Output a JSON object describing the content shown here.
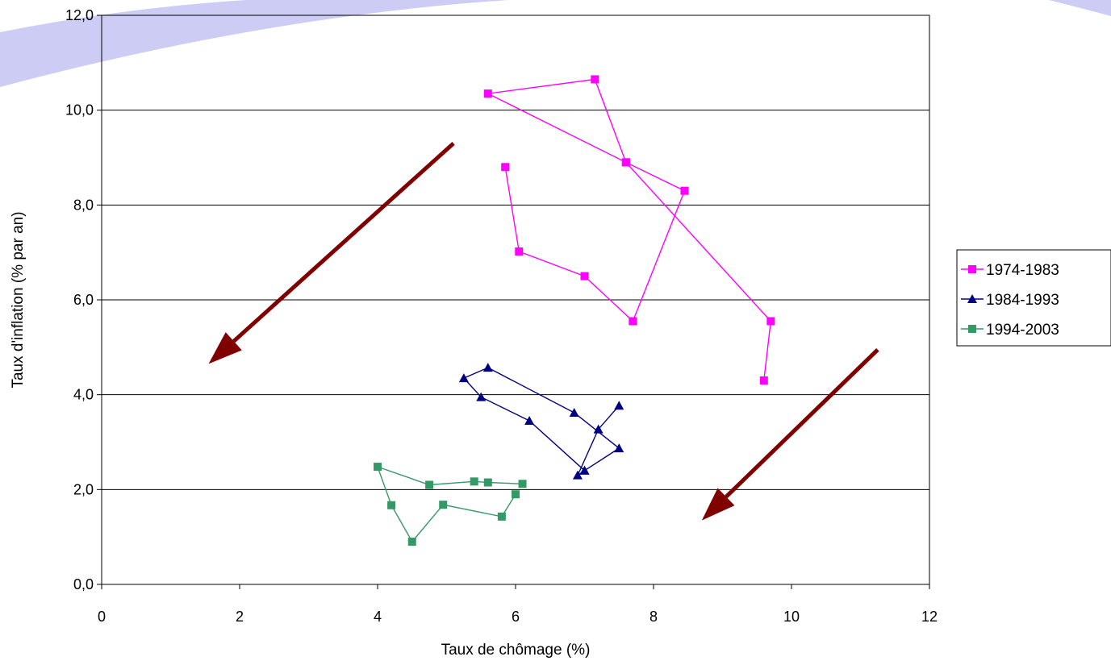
{
  "chart_data": {
    "type": "scatter",
    "title": "",
    "xlabel": "Taux de chômage (%)",
    "ylabel": "Taux d'inflation (% par an)",
    "xlim": [
      0,
      12
    ],
    "ylim": [
      0,
      12
    ],
    "x_ticks": [
      "0",
      "2",
      "4",
      "6",
      "8",
      "10",
      "12"
    ],
    "y_ticks": [
      "0,0",
      "2,0",
      "4,0",
      "6,0",
      "8,0",
      "10,0",
      "12,0"
    ],
    "grid": "horizontal",
    "legend_position": "right",
    "series": [
      {
        "name": "1974-1983",
        "color": "#ff00ff",
        "marker": "square",
        "points": [
          [
            9.6,
            4.3
          ],
          [
            9.7,
            5.55
          ],
          [
            7.6,
            8.9
          ],
          [
            5.6,
            10.35
          ],
          [
            7.15,
            10.65
          ],
          [
            7.6,
            8.9
          ],
          [
            8.45,
            8.3
          ],
          [
            7.7,
            5.55
          ],
          [
            7.0,
            6.5
          ],
          [
            6.05,
            7.02
          ],
          [
            5.85,
            8.8
          ]
        ]
      },
      {
        "name": "1984-1993",
        "color": "#000080",
        "marker": "triangle",
        "points": [
          [
            7.5,
            3.77
          ],
          [
            7.2,
            3.27
          ],
          [
            6.9,
            2.3
          ],
          [
            7.0,
            2.4
          ],
          [
            7.5,
            2.87
          ],
          [
            6.85,
            3.62
          ],
          [
            5.6,
            4.57
          ],
          [
            5.25,
            4.35
          ],
          [
            5.5,
            3.95
          ],
          [
            6.2,
            3.45
          ],
          [
            7.0,
            2.4
          ]
        ]
      },
      {
        "name": "1994-2003",
        "color": "#339966",
        "marker": "square",
        "points": [
          [
            6.1,
            2.12
          ],
          [
            5.6,
            2.15
          ],
          [
            5.4,
            2.17
          ],
          [
            4.75,
            2.1
          ],
          [
            4.0,
            2.48
          ],
          [
            4.2,
            1.67
          ],
          [
            4.5,
            0.9
          ],
          [
            4.95,
            1.68
          ],
          [
            5.8,
            1.43
          ],
          [
            6.0,
            1.9
          ]
        ]
      }
    ],
    "annotations": [
      {
        "type": "arrow",
        "color": "#800000",
        "from": [
          5.1,
          9.3
        ],
        "to": [
          1.55,
          4.65
        ]
      },
      {
        "type": "arrow",
        "color": "#800000",
        "from": [
          11.25,
          4.95
        ],
        "to": [
          8.7,
          1.35
        ]
      }
    ]
  }
}
